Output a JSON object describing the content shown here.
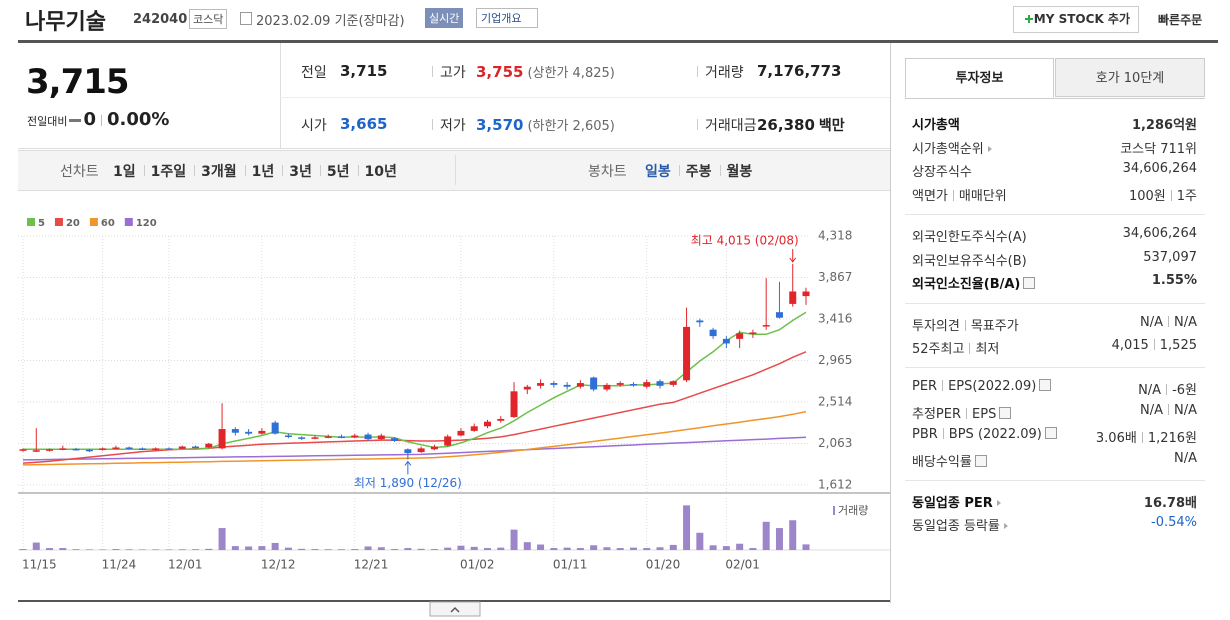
{
  "header": {
    "name": "나무기술",
    "code": "242040",
    "market": "코스닥",
    "date": "2023.02.09",
    "basis": "기준(장마감)",
    "realtime": "실시간",
    "overview": "기업개요",
    "my_stock": "MY STOCK 추가",
    "quick_order": "빠른주문"
  },
  "quote": {
    "price": "3,715",
    "change_label": "전일대비",
    "change": "0",
    "change_rate": "0.00%",
    "items": [
      {
        "label": "전일",
        "value": "3,715"
      },
      {
        "label": "고가",
        "value": "3,755",
        "sub": "(상한가 4,825)",
        "color": "red"
      },
      {
        "label": "거래량",
        "value": "7,176,773"
      },
      {
        "label": "시가",
        "value": "3,665",
        "color": "blue"
      },
      {
        "label": "저가",
        "value": "3,570",
        "sub": "(하한가 2,605)",
        "color": "blue"
      },
      {
        "label": "거래대금",
        "value": "26,380",
        "unit": "백만"
      }
    ]
  },
  "toolbar": {
    "line_chart": "선차트",
    "periods": [
      "1일",
      "1주일",
      "3개월",
      "1년",
      "3년",
      "5년",
      "10년"
    ],
    "candle_chart": "봉차트",
    "candle_periods": [
      "일봉",
      "주봉",
      "월봉"
    ],
    "selected_candle": 0
  },
  "invest": {
    "tabs": [
      "투자정보",
      "호가 10단계"
    ],
    "groups": [
      [
        {
          "label": [
            "시가총액"
          ],
          "value": [
            "1,286억원"
          ],
          "bold": true
        },
        {
          "label": [
            "시가총액순위"
          ],
          "arrow": true,
          "value": [
            "코스닥 711위"
          ]
        },
        {
          "label": [
            "상장주식수"
          ],
          "value": [
            "34,606,264"
          ]
        },
        {
          "label": [
            "액면가",
            "매매단위"
          ],
          "value": [
            "100원",
            "1주"
          ]
        }
      ],
      [
        {
          "label": [
            "외국인한도주식수(A)"
          ],
          "value": [
            "34,606,264"
          ]
        },
        {
          "label": [
            "외국인보유주식수(B)"
          ],
          "value": [
            "537,097"
          ]
        },
        {
          "label": [
            "외국인소진율(B/A)"
          ],
          "help": true,
          "value": [
            "1.55%"
          ],
          "bold": true
        }
      ],
      [
        {
          "label": [
            "투자의견",
            "목표주가"
          ],
          "value": [
            "N/A",
            "N/A"
          ]
        },
        {
          "label": [
            "52주최고",
            "최저"
          ],
          "value": [
            "4,015",
            "1,525"
          ]
        }
      ],
      [
        {
          "label": [
            "PER",
            "EPS(2022.09)"
          ],
          "help": true,
          "value": [
            "N/A",
            "-6원"
          ]
        },
        {
          "label": [
            "추정PER",
            "EPS"
          ],
          "help": true,
          "value": [
            "N/A",
            "N/A"
          ]
        },
        {
          "label": [
            "PBR",
            "BPS (2022.09)"
          ],
          "help": true,
          "value": [
            "3.06배",
            "1,216원"
          ]
        },
        {
          "label": [
            "배당수익률"
          ],
          "help": true,
          "value": [
            "N/A"
          ]
        }
      ],
      [
        {
          "label": [
            "동일업종 PER"
          ],
          "arrow": true,
          "value": [
            "16.78배"
          ],
          "bold": true
        },
        {
          "label": [
            "동일업종 등락률"
          ],
          "arrow": true,
          "value": [
            "-0.54%"
          ],
          "color": "blue"
        }
      ]
    ]
  },
  "chart_data": {
    "type": "candlestick",
    "categories": [
      "11/15",
      null,
      null,
      null,
      null,
      null,
      "11/24",
      null,
      null,
      null,
      null,
      "12/01",
      null,
      null,
      null,
      null,
      null,
      null,
      "12/12",
      null,
      null,
      null,
      null,
      null,
      null,
      "12/21",
      null,
      null,
      null,
      null,
      null,
      null,
      null,
      "01/02",
      null,
      null,
      null,
      null,
      null,
      null,
      "01/11",
      null,
      null,
      null,
      null,
      null,
      null,
      "01/20",
      null,
      null,
      null,
      null,
      null,
      "02/01",
      null,
      null,
      null,
      null,
      null,
      null
    ],
    "candles": {
      "up_color": "#e0262b",
      "down_color": "#2f6fd6",
      "open": [
        1990,
        1985,
        1990,
        2000,
        2005,
        1995,
        1995,
        2015,
        2020,
        2010,
        2000,
        2010,
        2005,
        2030,
        2020,
        2010,
        2220,
        2190,
        2170,
        2290,
        2150,
        2130,
        2120,
        2130,
        2140,
        2130,
        2160,
        2110,
        2120,
        2000,
        1970,
        2000,
        2040,
        2150,
        2200,
        2250,
        2310,
        2350,
        2650,
        2690,
        2720,
        2700,
        2680,
        2780,
        2650,
        2700,
        2710,
        2680,
        2740,
        2700,
        2750,
        3400,
        3300,
        3200,
        3200,
        3260,
        3340,
        3490,
        3580,
        3665
      ],
      "high": [
        2010,
        2230,
        2010,
        2040,
        2015,
        2005,
        2020,
        2040,
        2030,
        2020,
        2020,
        2020,
        2040,
        2040,
        2070,
        2500,
        2240,
        2220,
        2230,
        2310,
        2170,
        2140,
        2150,
        2160,
        2160,
        2170,
        2180,
        2170,
        2130,
        2010,
        2030,
        2050,
        2160,
        2230,
        2280,
        2320,
        2360,
        2730,
        2700,
        2760,
        2740,
        2730,
        2750,
        2790,
        2720,
        2740,
        2730,
        2760,
        2760,
        2750,
        3540,
        3420,
        3320,
        3230,
        3290,
        3300,
        3860,
        3820,
        4015,
        3755
      ],
      "low": [
        1975,
        1970,
        1975,
        1990,
        1985,
        1970,
        1985,
        2000,
        2000,
        1995,
        1990,
        1995,
        2000,
        2010,
        2010,
        2000,
        2150,
        2150,
        2160,
        2160,
        2120,
        2100,
        2110,
        2120,
        2120,
        2120,
        2090,
        2100,
        2080,
        1890,
        1960,
        1990,
        2030,
        2140,
        2190,
        2230,
        2290,
        2340,
        2600,
        2660,
        2670,
        2650,
        2660,
        2630,
        2630,
        2680,
        2680,
        2660,
        2660,
        2680,
        2730,
        3330,
        3200,
        3100,
        3100,
        3210,
        3300,
        3420,
        3550,
        3570
      ],
      "close": [
        2000,
        1990,
        2000,
        2010,
        1995,
        1990,
        2010,
        2020,
        2010,
        2000,
        2010,
        2005,
        2030,
        2020,
        2060,
        2220,
        2180,
        2170,
        2200,
        2170,
        2140,
        2120,
        2130,
        2140,
        2130,
        2150,
        2110,
        2150,
        2090,
        1960,
        2010,
        2030,
        2140,
        2200,
        2250,
        2300,
        2330,
        2630,
        2680,
        2720,
        2700,
        2680,
        2720,
        2650,
        2700,
        2720,
        2700,
        2730,
        2690,
        2740,
        3330,
        3380,
        3230,
        3150,
        3260,
        3270,
        3350,
        3430,
        3715,
        3715
      ]
    },
    "series": [
      {
        "name": "5",
        "color": "#6cc14a",
        "values": [
          2000,
          2000,
          2000,
          2000,
          2000,
          2000,
          2000,
          2000,
          2000,
          2000,
          2000,
          2000,
          2000,
          2000,
          2010,
          2060,
          2090,
          2120,
          2150,
          2190,
          2170,
          2160,
          2150,
          2140,
          2130,
          2135,
          2130,
          2135,
          2125,
          2080,
          2050,
          2020,
          2030,
          2070,
          2120,
          2180,
          2230,
          2310,
          2400,
          2480,
          2560,
          2630,
          2700,
          2690,
          2690,
          2690,
          2700,
          2700,
          2710,
          2720,
          2840,
          2960,
          3060,
          3180,
          3270,
          3250,
          3250,
          3300,
          3400,
          3490
        ]
      },
      {
        "name": "20",
        "color": "#e84a4a",
        "values": [
          1850,
          1860,
          1870,
          1885,
          1900,
          1915,
          1930,
          1945,
          1960,
          1975,
          1985,
          1995,
          2000,
          2005,
          2010,
          2025,
          2035,
          2045,
          2055,
          2060,
          2065,
          2070,
          2075,
          2080,
          2085,
          2090,
          2095,
          2100,
          2100,
          2095,
          2090,
          2090,
          2095,
          2100,
          2110,
          2120,
          2135,
          2160,
          2190,
          2220,
          2250,
          2280,
          2310,
          2340,
          2370,
          2400,
          2430,
          2460,
          2490,
          2510,
          2560,
          2610,
          2660,
          2710,
          2760,
          2810,
          2870,
          2930,
          3000,
          3060
        ]
      },
      {
        "name": "60",
        "color": "#f0952b",
        "values": [
          1830,
          1833,
          1835,
          1838,
          1840,
          1843,
          1845,
          1848,
          1850,
          1853,
          1855,
          1858,
          1860,
          1863,
          1865,
          1868,
          1870,
          1873,
          1875,
          1878,
          1880,
          1883,
          1885,
          1888,
          1890,
          1893,
          1895,
          1898,
          1900,
          1903,
          1905,
          1910,
          1918,
          1928,
          1940,
          1953,
          1967,
          1982,
          1998,
          2015,
          2032,
          2050,
          2068,
          2086,
          2104,
          2122,
          2140,
          2158,
          2176,
          2195,
          2215,
          2235,
          2255,
          2275,
          2295,
          2315,
          2335,
          2355,
          2380,
          2410
        ]
      },
      {
        "name": "120",
        "color": "#9b6dd6",
        "values": [
          1885,
          1887,
          1889,
          1891,
          1893,
          1895,
          1897,
          1899,
          1901,
          1903,
          1905,
          1907,
          1909,
          1911,
          1913,
          1915,
          1917,
          1919,
          1921,
          1923,
          1925,
          1927,
          1929,
          1931,
          1933,
          1935,
          1937,
          1939,
          1941,
          1943,
          1945,
          1951,
          1958,
          1964,
          1971,
          1977,
          1983,
          1990,
          1996,
          2003,
          2009,
          2015,
          2022,
          2028,
          2035,
          2041,
          2047,
          2054,
          2060,
          2067,
          2073,
          2079,
          2086,
          2092,
          2099,
          2105,
          2111,
          2118,
          2124,
          2131
        ]
      }
    ],
    "volume": {
      "name": "거래량",
      "color": "#9d85c9",
      "ylim": [
        0,
        60000000
      ],
      "values": [
        1200000,
        9500000,
        2500000,
        2500000,
        1000000,
        800000,
        700000,
        1200000,
        900000,
        700000,
        800000,
        700000,
        900000,
        1000000,
        1500000,
        28000000,
        5000000,
        4500000,
        5000000,
        9000000,
        3000000,
        1500000,
        1200000,
        1000000,
        1000000,
        1200000,
        4500000,
        3500000,
        1200000,
        2500000,
        1500000,
        1200000,
        3000000,
        5500000,
        4000000,
        2500000,
        3000000,
        26000000,
        10000000,
        7000000,
        2500000,
        3000000,
        2500000,
        6000000,
        3500000,
        2500000,
        3000000,
        2500000,
        3500000,
        6500000,
        57000000,
        22000000,
        6000000,
        5000000,
        8000000,
        2500000,
        36000000,
        28000000,
        38000000,
        7176773
      ]
    },
    "ylim": [
      1612,
      4318
    ],
    "yticks": [
      {
        "value": 1612,
        "label": "1,612"
      },
      {
        "value": 2063,
        "label": "2,063"
      },
      {
        "value": 2514,
        "label": "2,514"
      },
      {
        "value": 2965,
        "label": "2,965"
      },
      {
        "value": 3416,
        "label": "3,416"
      },
      {
        "value": 3867,
        "label": "3,867"
      },
      {
        "value": 4318,
        "label": "4,318"
      }
    ],
    "grid": true,
    "annotations": [
      {
        "text": "최고 4,015 (02/08)",
        "anchor": "high",
        "color": "#e0262b"
      },
      {
        "text": "최저 1,890 (12/26)",
        "anchor": "low",
        "color": "#2f6fd6"
      }
    ]
  }
}
